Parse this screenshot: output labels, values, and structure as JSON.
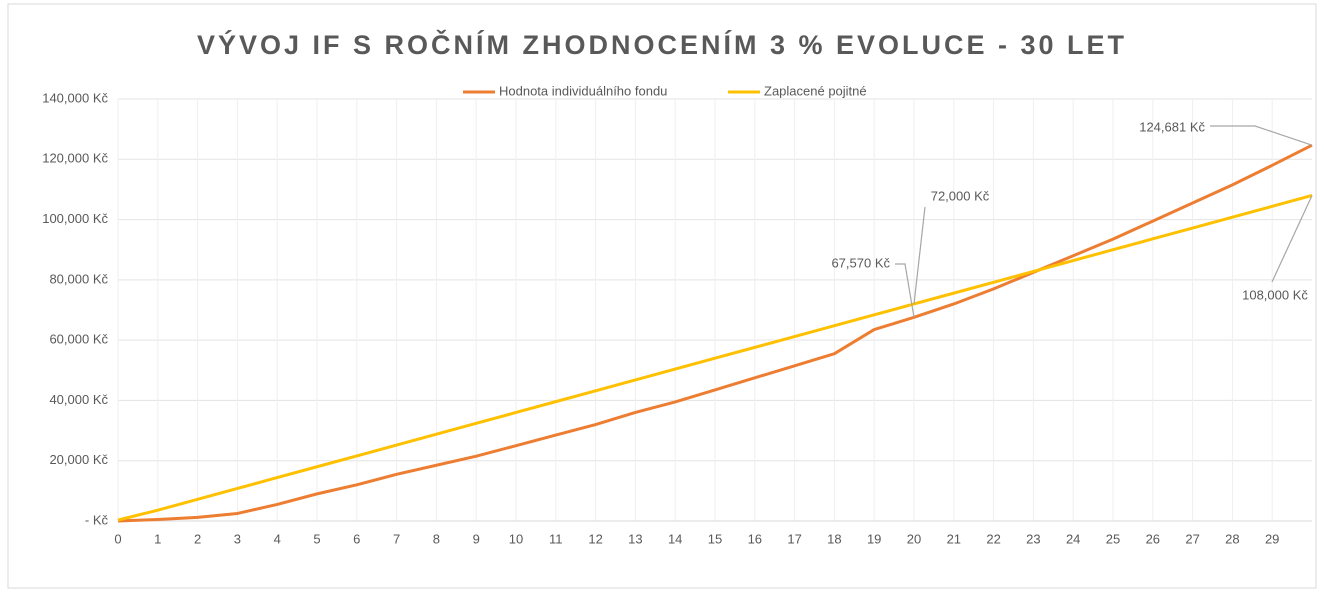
{
  "chart_data": {
    "type": "line",
    "title": "VÝVOJ IF S ROČNÍM ZHODNOCENÍM 3 % EVOLUCE - 30 LET",
    "legend": "top",
    "grid": true,
    "x": [
      0,
      1,
      2,
      3,
      4,
      5,
      6,
      7,
      8,
      9,
      10,
      11,
      12,
      13,
      14,
      15,
      16,
      17,
      18,
      19,
      20,
      21,
      22,
      23,
      24,
      25,
      26,
      27,
      28,
      29,
      30
    ],
    "xlim": [
      0,
      30
    ],
    "xticks": [
      0,
      1,
      2,
      3,
      4,
      5,
      6,
      7,
      8,
      9,
      10,
      11,
      12,
      13,
      14,
      15,
      16,
      17,
      18,
      19,
      20,
      21,
      22,
      23,
      24,
      25,
      26,
      27,
      28,
      29
    ],
    "ylim": [
      0,
      140000
    ],
    "yticks": [
      {
        "value": 0,
        "label": "-   Kč"
      },
      {
        "value": 20000,
        "label": "20,000 Kč"
      },
      {
        "value": 40000,
        "label": "40,000 Kč"
      },
      {
        "value": 60000,
        "label": "60,000 Kč"
      },
      {
        "value": 80000,
        "label": "80,000 Kč"
      },
      {
        "value": 100000,
        "label": "100,000 Kč"
      },
      {
        "value": 120000,
        "label": "120,000 Kč"
      },
      {
        "value": 140000,
        "label": "140,000 Kč"
      }
    ],
    "series": [
      {
        "name": "Hodnota individuálního fondu",
        "color": "#ed7d31",
        "values": [
          0,
          500,
          1200,
          2500,
          5500,
          9000,
          12000,
          15500,
          18500,
          21500,
          25000,
          28500,
          32000,
          36000,
          39500,
          43500,
          47500,
          51500,
          55500,
          63500,
          67570,
          72000,
          77000,
          82500,
          88000,
          93500,
          99500,
          105500,
          111500,
          118000,
          124681
        ],
        "value_labels": [
          null,
          null,
          null,
          null,
          null,
          null,
          null,
          null,
          null,
          null,
          null,
          null,
          null,
          null,
          null,
          null,
          null,
          null,
          null,
          null,
          "67,570 Kč",
          null,
          null,
          null,
          null,
          null,
          null,
          null,
          null,
          null,
          "124,681 Kč"
        ]
      },
      {
        "name": "Zaplacené pojitné",
        "color": "#ffc000",
        "values": [
          300,
          3600,
          7200,
          10800,
          14400,
          18000,
          21600,
          25200,
          28800,
          32400,
          36000,
          39600,
          43200,
          46800,
          50400,
          54000,
          57600,
          61200,
          64800,
          68400,
          72000,
          75600,
          79200,
          82800,
          86400,
          90000,
          93600,
          97200,
          100800,
          104400,
          108000
        ],
        "value_labels": [
          null,
          null,
          null,
          null,
          null,
          null,
          null,
          null,
          null,
          null,
          null,
          null,
          null,
          null,
          null,
          null,
          null,
          null,
          null,
          null,
          "72,000 Kč",
          null,
          null,
          null,
          null,
          null,
          null,
          null,
          null,
          null,
          "108,000 Kč"
        ]
      }
    ]
  }
}
